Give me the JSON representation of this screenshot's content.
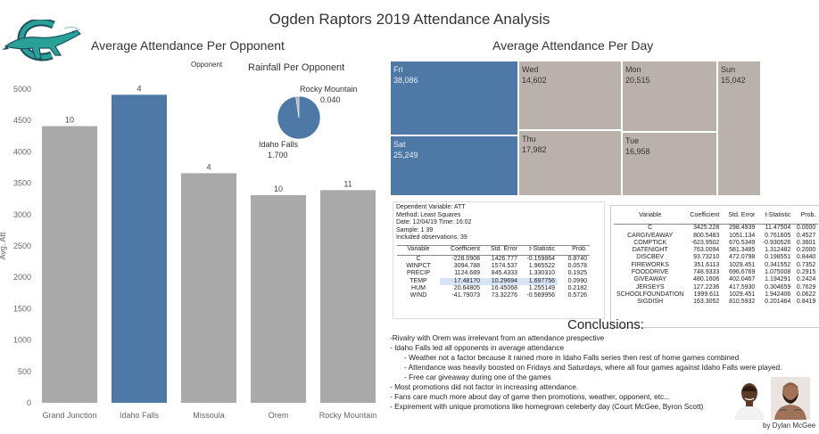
{
  "title": "Ogden Raptors 2019 Attendance Analysis",
  "logo": {
    "name": "ogden-raptors-logo",
    "colors": {
      "body": "#2aa198",
      "dark": "#1f4f5e",
      "accent": "#7fc9c2"
    }
  },
  "bar_chart_title": "Average Attendance Per Opponent",
  "legend_label": "Opponent",
  "pie_chart_title": "Rainfall Per Opponent",
  "tree_chart_title": "Average Attendance Per Day",
  "chart_data": [
    {
      "type": "bar",
      "title": "Average Attendance Per Opponent",
      "ylabel": "Avg. Att",
      "categories": [
        "Grand Junction",
        "Idaho Falls",
        "Missoula",
        "Orem",
        "Rocky Mountain"
      ],
      "values": [
        4410,
        4910,
        3660,
        3310,
        3390
      ],
      "data_labels": [
        "10",
        "4",
        "4",
        "10",
        "11"
      ],
      "highlight": "Idaho Falls",
      "ylim": [
        0,
        5000
      ],
      "yticks": [
        0,
        500,
        1000,
        1500,
        2000,
        2500,
        3000,
        3500,
        4000,
        4500,
        5000
      ],
      "colors": {
        "bar": "#a9a9a9",
        "highlight": "#4e79a7"
      },
      "grid": false
    },
    {
      "type": "pie",
      "title": "Rainfall Per Opponent",
      "slices": [
        {
          "label": "Idaho Falls",
          "value": 1.7,
          "value_label": "1.700",
          "color": "#4e79a7"
        },
        {
          "label": "Rocky Mountain",
          "value": 0.04,
          "value_label": "0.040",
          "color": "#bab0ac"
        }
      ]
    },
    {
      "type": "treemap",
      "title": "Average Attendance Per Day",
      "cells": [
        {
          "day": "Fri",
          "value": "38,086",
          "color": "#4e79a7"
        },
        {
          "day": "Sat",
          "value": "25,249",
          "color": "#4e79a7"
        },
        {
          "day": "Wed",
          "value": "14,602",
          "color": "#bab0ac"
        },
        {
          "day": "Thu",
          "value": "17,982",
          "color": "#bab0ac"
        },
        {
          "day": "Mon",
          "value": "20,515",
          "color": "#bab0ac"
        },
        {
          "day": "Tue",
          "value": "16,958",
          "color": "#bab0ac"
        },
        {
          "day": "Sun",
          "value": "15,042",
          "color": "#bab0ac"
        }
      ]
    },
    {
      "type": "table",
      "title": "Dependent Variable: ATT",
      "info": [
        "Dependent Variable: ATT",
        "Method: Least Squares",
        "Date: 12/04/19   Time: 16:02",
        "Sample: 1 39",
        "Included observations: 39"
      ],
      "columns": [
        "Variable",
        "Coefficient",
        "Std. Error",
        "t-Statistic",
        "Prob."
      ],
      "rows": [
        [
          "C",
          "-228.0908",
          "1426.777",
          "-0.159864",
          "0.8740"
        ],
        [
          "WINPCT",
          "3094.788",
          "1574.537",
          "1.965522",
          "0.0578"
        ],
        [
          "PRECIP",
          "1124.689",
          "845.4333",
          "1.330310",
          "0.1925"
        ],
        [
          "TEMP",
          "17.48170",
          "10.29694",
          "1.697756",
          "0.0990"
        ],
        [
          "HUM",
          "20.64805",
          "16.45068",
          "1.255149",
          "0.2182"
        ],
        [
          "WIND",
          "-41.79073",
          "73.32276",
          "-0.569956",
          "0.5726"
        ]
      ]
    },
    {
      "type": "table",
      "columns": [
        "Variable",
        "Coefficient",
        "Std. Error",
        "t-Statistic",
        "Prob."
      ],
      "rows": [
        [
          "C",
          "3425.228",
          "298.4939",
          "11.47504",
          "0.0000"
        ],
        [
          "CARGIVEAWAY",
          "800.5483",
          "1051.134",
          "0.761605",
          "0.4527"
        ],
        [
          "COMPTICK",
          "-623.9502",
          "670.5349",
          "-0.930526",
          "0.3601"
        ],
        [
          "DATENIGHT",
          "763.0094",
          "581.3485",
          "1.312482",
          "0.2000"
        ],
        [
          "DISCBEV",
          "93.73210",
          "472.0798",
          "0.198551",
          "0.8440"
        ],
        [
          "FIREWORKS",
          "351.6113",
          "1029.451",
          "0.341552",
          "0.7352"
        ],
        [
          "FOODDRIVE",
          "748.9333",
          "696.6769",
          "1.075008",
          "0.2915"
        ],
        [
          "GIVEAWAY",
          "480.1606",
          "402.0467",
          "1.194291",
          "0.2424"
        ],
        [
          "JERSEYS",
          "127.2236",
          "417.5930",
          "0.304659",
          "0.7629"
        ],
        [
          "SCHOOLFOUNDATION",
          "1999.611",
          "1029.451",
          "1.942406",
          "0.0622"
        ],
        [
          "SIGDISH",
          "163.3052",
          "810.5932",
          "0.201464",
          "0.8419"
        ]
      ]
    }
  ],
  "conclusions": {
    "title": "Conclusions:",
    "lines": [
      {
        "text": "-Rivalry with Orem was irrelevant from an attendance prespective",
        "indent": 0
      },
      {
        "text": "- Idaho Falls led all opponents in average attendance",
        "indent": 0
      },
      {
        "text": "- Weather not a factor because it rained more in Idaho Falls series then rest of home games combined",
        "indent": 1
      },
      {
        "text": "- Attendance was heavily boosted on Fridays and Saturdays, where all four games against Idaho Falls were played.",
        "indent": 1
      },
      {
        "text": "- Free car giveaway during one of the games",
        "indent": 1
      },
      {
        "text": "- Most promotions did not factor in increasing attendance.",
        "indent": 0
      },
      {
        "text": "- Fans care much more about day of game then promotions, weather, opponent, etc...",
        "indent": 0
      },
      {
        "text": "- Expirement with unique promotions like homegrown celeberty day (Court McGee, Byron Scott)",
        "indent": 0
      }
    ]
  },
  "byline": "by Dylan McGee",
  "photos": [
    {
      "name": "court-mcgee-photo",
      "colors": {
        "skin": "#5a3a26",
        "shirt": "#f2f2f2"
      }
    },
    {
      "name": "byron-scott-photo",
      "colors": {
        "skin": "#a0725a",
        "beard": "#2b1b12"
      }
    }
  ]
}
